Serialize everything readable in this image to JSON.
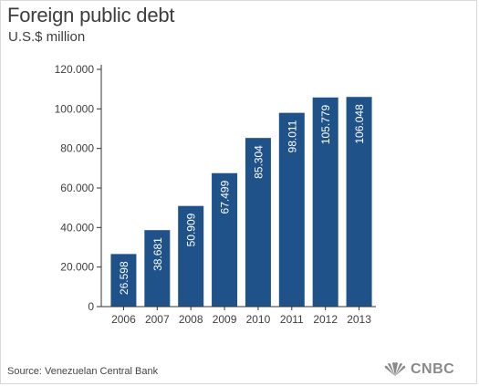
{
  "title": "Foreign public debt",
  "subtitle": "U.S.$ million",
  "source": "Source: Venezuelan Central Bank",
  "brand": {
    "name": "CNBC",
    "icon": "peacock-icon"
  },
  "colors": {
    "bar": "#1f5289",
    "bar_label": "#ffffff",
    "axis": "#333333",
    "text": "#3d3d3d"
  },
  "chart_data": {
    "type": "bar",
    "categories": [
      "2006",
      "2007",
      "2008",
      "2009",
      "2010",
      "2011",
      "2012",
      "2013"
    ],
    "values": [
      26598,
      38681,
      50909,
      67499,
      85304,
      98011,
      105779,
      106048
    ],
    "value_labels": [
      "26.598",
      "38.681",
      "50.909",
      "67.499",
      "85.304",
      "98.011",
      "105.779",
      "106.048"
    ],
    "title": "Foreign public debt",
    "subtitle": "U.S.$ million",
    "xlabel": "",
    "ylabel": "",
    "ylim": [
      0,
      120000
    ],
    "yticks": [
      0,
      20000,
      40000,
      60000,
      80000,
      100000,
      120000
    ],
    "ytick_labels": [
      "0",
      "20.000",
      "40.000",
      "60.000",
      "80.000",
      "100.000",
      "120.000"
    ],
    "grid": false,
    "legend": "none"
  }
}
